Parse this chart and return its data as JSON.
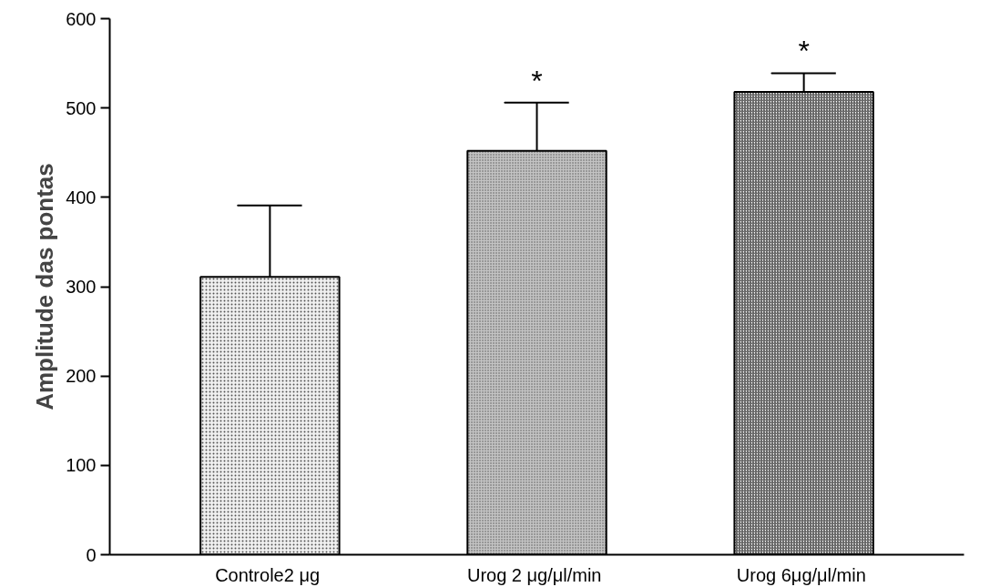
{
  "chart_data": {
    "type": "bar",
    "ylabel": "Amplitude das pontas",
    "categories": [
      "Controle2  μg",
      "Urog 2  μg/μl/min",
      "Urog  6μg/μl/min"
    ],
    "values": [
      311,
      452,
      518
    ],
    "colors": [
      "#f0f0f0",
      "#c4c4c4",
      "#ffffff"
    ],
    "errors": [
      [
        311,
        391
      ],
      [
        452,
        506
      ],
      [
        518,
        539
      ]
    ],
    "ylim": [
      0,
      600
    ],
    "yticks": [
      0,
      100,
      200,
      300,
      400,
      500,
      600
    ],
    "grid": false,
    "annotations": [
      "*",
      "*"
    ]
  }
}
